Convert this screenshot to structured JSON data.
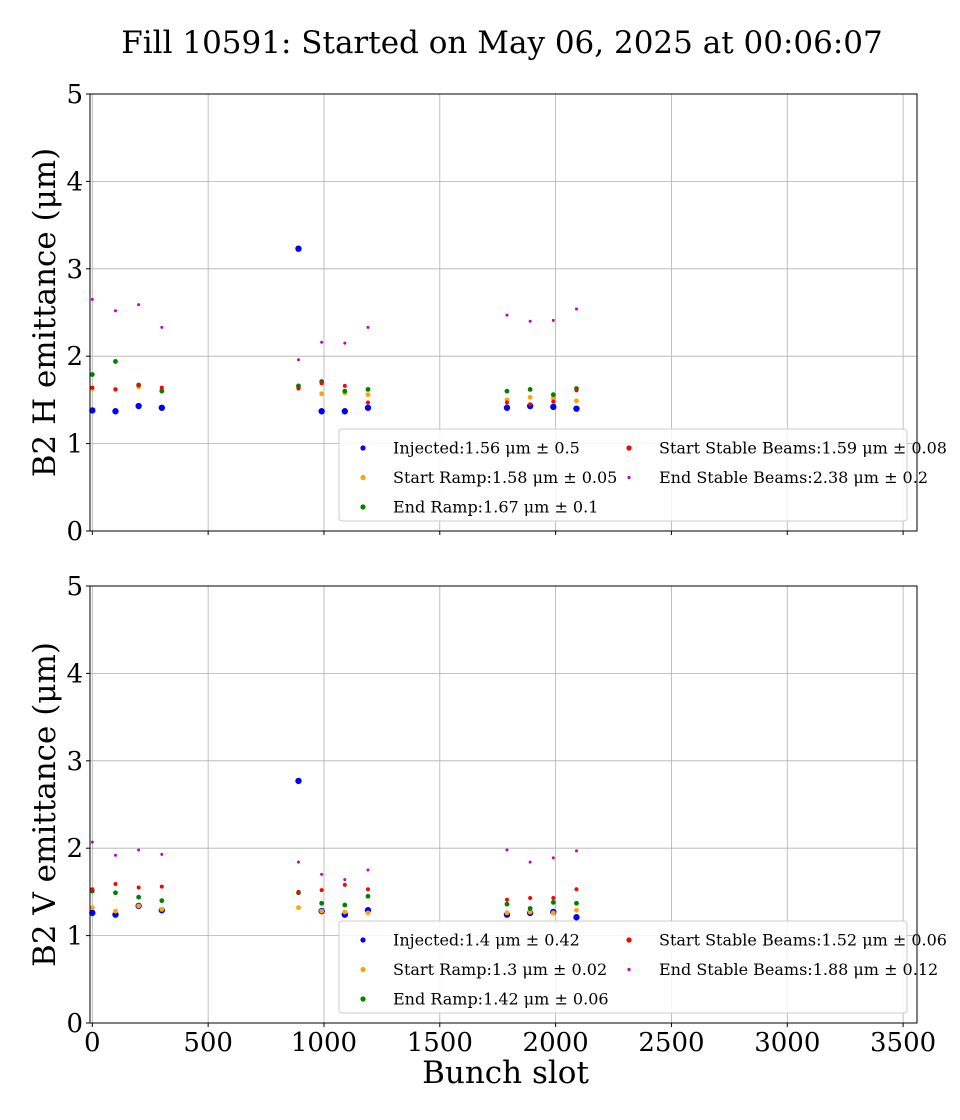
{
  "title": "Fill 10591: Started on May 06, 2025 at 00:06:07",
  "chart_data": [
    {
      "type": "scatter",
      "ylabel": "B2 H emittance (μm)",
      "xlabel": "",
      "xlim": [
        -10,
        3560
      ],
      "ylim": [
        0,
        5
      ],
      "x_ticks": [
        0,
        500,
        1000,
        1500,
        2000,
        2500,
        3000,
        3500
      ],
      "y_ticks": [
        0,
        1,
        2,
        3,
        4,
        5
      ],
      "grid": true,
      "legend_position": "lower right",
      "series": [
        {
          "name": "Injected",
          "stat": "1.56 μm ± 0.5",
          "color": "#0000ff",
          "x": [
            0,
            100,
            200,
            300,
            890,
            990,
            1090,
            1190,
            1790,
            1890,
            1990,
            2090
          ],
          "y": [
            1.38,
            1.37,
            1.43,
            1.41,
            3.23,
            1.37,
            1.37,
            1.41,
            1.41,
            1.43,
            1.42,
            1.4
          ]
        },
        {
          "name": "Start Ramp",
          "stat": "1.58 μm ± 0.05",
          "color": "#ffa500",
          "x": [
            0,
            100,
            200,
            300,
            890,
            990,
            1090,
            1190,
            1790,
            1890,
            1990,
            2090
          ],
          "y": [
            1.63,
            1.62,
            1.65,
            1.61,
            1.64,
            1.57,
            1.58,
            1.56,
            1.5,
            1.53,
            1.52,
            1.49
          ]
        },
        {
          "name": "End Ramp",
          "stat": "1.67 μm ± 0.1",
          "color": "#008000",
          "x": [
            0,
            100,
            200,
            300,
            890,
            990,
            1090,
            1190,
            1790,
            1890,
            1990,
            2090
          ],
          "y": [
            1.79,
            1.94,
            1.67,
            1.6,
            1.66,
            1.71,
            1.6,
            1.62,
            1.6,
            1.62,
            1.56,
            1.63
          ]
        },
        {
          "name": "Start Stable Beams",
          "stat": "1.59 μm ± 0.08",
          "color": "#ff0000",
          "x": [
            0,
            100,
            200,
            300,
            890,
            990,
            1090,
            1190,
            1790,
            1890,
            1990,
            2090
          ],
          "y": [
            1.64,
            1.62,
            1.67,
            1.64,
            1.63,
            1.69,
            1.66,
            1.47,
            1.47,
            1.45,
            1.48,
            1.61
          ]
        },
        {
          "name": "End Stable Beams",
          "stat": "2.38 μm ± 0.2",
          "color": "#bf00bf",
          "x": [
            0,
            100,
            200,
            300,
            890,
            990,
            1090,
            1190,
            1790,
            1890,
            1990,
            2090
          ],
          "y": [
            2.65,
            2.52,
            2.59,
            2.33,
            1.96,
            2.16,
            2.15,
            2.33,
            2.47,
            2.4,
            2.41,
            2.54
          ]
        }
      ]
    },
    {
      "type": "scatter",
      "ylabel": "B2 V emittance (μm)",
      "xlabel": "Bunch slot",
      "xlim": [
        -10,
        3560
      ],
      "ylim": [
        0,
        5
      ],
      "x_ticks": [
        0,
        500,
        1000,
        1500,
        2000,
        2500,
        3000,
        3500
      ],
      "y_ticks": [
        0,
        1,
        2,
        3,
        4,
        5
      ],
      "grid": true,
      "legend_position": "lower right",
      "series": [
        {
          "name": "Injected",
          "stat": "1.4 μm ± 0.42",
          "color": "#0000ff",
          "x": [
            0,
            100,
            200,
            300,
            890,
            990,
            1090,
            1190,
            1790,
            1890,
            1990,
            2090
          ],
          "y": [
            1.26,
            1.24,
            1.34,
            1.29,
            2.77,
            1.28,
            1.24,
            1.29,
            1.24,
            1.26,
            1.27,
            1.21
          ]
        },
        {
          "name": "Start Ramp",
          "stat": "1.3 μm ± 0.02",
          "color": "#ffa500",
          "x": [
            0,
            100,
            200,
            300,
            890,
            990,
            1090,
            1190,
            1790,
            1890,
            1990,
            2090
          ],
          "y": [
            1.32,
            1.28,
            1.34,
            1.3,
            1.32,
            1.28,
            1.27,
            1.26,
            1.26,
            1.27,
            1.26,
            1.29
          ]
        },
        {
          "name": "End Ramp",
          "stat": "1.42 μm ± 0.06",
          "color": "#008000",
          "x": [
            0,
            100,
            200,
            300,
            890,
            990,
            1090,
            1190,
            1790,
            1890,
            1990,
            2090
          ],
          "y": [
            1.51,
            1.49,
            1.44,
            1.4,
            1.49,
            1.37,
            1.35,
            1.45,
            1.36,
            1.31,
            1.38,
            1.37
          ]
        },
        {
          "name": "Start Stable Beams",
          "stat": "1.52 μm ± 0.06",
          "color": "#ff0000",
          "x": [
            0,
            100,
            200,
            300,
            890,
            990,
            1090,
            1190,
            1790,
            1890,
            1990,
            2090
          ],
          "y": [
            1.53,
            1.59,
            1.55,
            1.56,
            1.5,
            1.52,
            1.58,
            1.53,
            1.41,
            1.43,
            1.43,
            1.53
          ]
        },
        {
          "name": "End Stable Beams",
          "stat": "1.88 μm ± 0.12",
          "color": "#bf00bf",
          "x": [
            0,
            100,
            200,
            300,
            890,
            990,
            1090,
            1190,
            1790,
            1890,
            1990,
            2090
          ],
          "y": [
            2.07,
            1.92,
            1.98,
            1.93,
            1.84,
            1.7,
            1.64,
            1.75,
            1.98,
            1.84,
            1.89,
            1.97
          ]
        }
      ]
    }
  ]
}
